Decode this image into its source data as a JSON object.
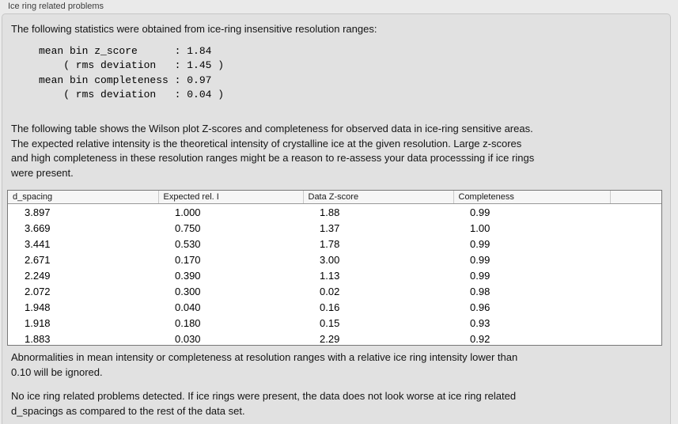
{
  "panel": {
    "title": "Ice ring related problems",
    "intro": "The following statistics were obtained from ice-ring insensitive resolution ranges:",
    "stats_block": "mean bin z_score      : 1.84\n    ( rms deviation   : 1.45 )\nmean bin completeness : 0.97\n    ( rms deviation   : 0.04 )",
    "stats": {
      "mean_bin_z_score": "1.84",
      "z_score_rms_deviation": "1.45",
      "mean_bin_completeness": "0.97",
      "completeness_rms_deviation": "0.04"
    },
    "table_description": "The following table shows the Wilson plot Z-scores and completeness for observed data in ice-ring sensitive areas.\nThe expected relative intensity is the theoretical intensity of crystalline ice at the given resolution. Large z-scores\nand high completeness in these resolution ranges might be a reason to re-assess your data processsing if ice rings\nwere present.",
    "ignore_note": "Abnormalities in mean intensity or completeness at resolution ranges with a relative ice ring intensity lower than\n0.10 will be ignored.",
    "conclusion": "No ice ring related problems detected. If ice rings were present, the data does not look worse at ice ring related\nd_spacings as compared to the rest of the data set."
  },
  "table": {
    "columns": [
      "d_spacing",
      "Expected rel. I",
      "Data Z-score",
      "Completeness",
      ""
    ],
    "rows": [
      [
        "3.897",
        "1.000",
        "1.88",
        "0.99"
      ],
      [
        "3.669",
        "0.750",
        "1.37",
        "1.00"
      ],
      [
        "3.441",
        "0.530",
        "1.78",
        "0.99"
      ],
      [
        "2.671",
        "0.170",
        "3.00",
        "0.99"
      ],
      [
        "2.249",
        "0.390",
        "1.13",
        "0.99"
      ],
      [
        "2.072",
        "0.300",
        "0.02",
        "0.98"
      ],
      [
        "1.948",
        "0.040",
        "0.16",
        "0.96"
      ],
      [
        "1.918",
        "0.180",
        "0.15",
        "0.93"
      ],
      [
        "1.883",
        "0.030",
        "2.29",
        "0.92"
      ]
    ]
  },
  "colors": {
    "page_bg": "#eaeaea",
    "panel_bg": "#e1e1e1",
    "panel_border": "#c6c6c6",
    "table_border": "#787878",
    "table_header_bg": "#f6f6f6",
    "table_body_bg": "#ffffff"
  }
}
